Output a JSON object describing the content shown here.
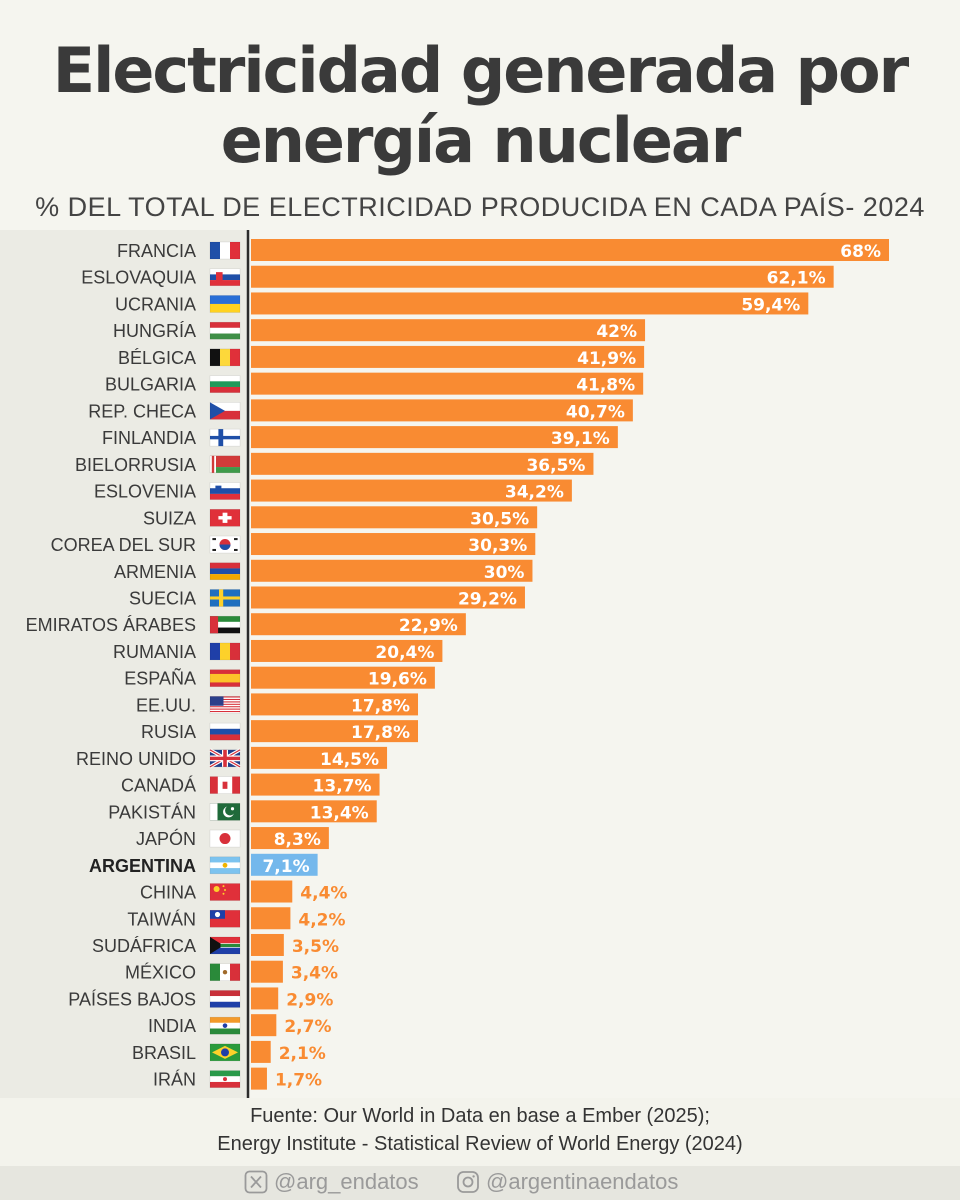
{
  "title_line1": "Electricidad generada por",
  "title_line2": "energía nuclear",
  "subtitle": "% DEL TOTAL DE ELECTRICIDAD PRODUCIDA EN CADA PAÍS- 2024",
  "source_line1": "Fuente: Our World in Data en base a Ember (2025);",
  "source_line2": "Energy Institute - Statistical Review of World Energy (2024)",
  "social": {
    "x_handle": "@arg_endatos",
    "x_icon": "x-logo-icon",
    "instagram_handle": "@argentinaendatos",
    "instagram_icon": "instagram-icon"
  },
  "colors": {
    "bar": "#f98b32",
    "highlight_bar": "#74b8ec",
    "label_outside": "#f98b32",
    "label_inside": "#ffffff",
    "text": "#3a3a3a"
  },
  "chart_data": {
    "type": "bar",
    "orientation": "horizontal",
    "unit": "%",
    "highlight": "ARGENTINA",
    "categories": [
      "FRANCIA",
      "ESLOVAQUIA",
      "UCRANIA",
      "HUNGRÍA",
      "BÉLGICA",
      "BULGARIA",
      "REP. CHECA",
      "FINLANDIA",
      "BIELORRUSIA",
      "ESLOVENIA",
      "SUIZA",
      "COREA DEL SUR",
      "ARMENIA",
      "SUECIA",
      "EMIRATOS ÁRABES",
      "RUMANIA",
      "ESPAÑA",
      "EE.UU.",
      "RUSIA",
      "REINO UNIDO",
      "CANADÁ",
      "PAKISTÁN",
      "JAPÓN",
      "ARGENTINA",
      "CHINA",
      "TAIWÁN",
      "SUDÁFRICA",
      "MÉXICO",
      "PAÍSES BAJOS",
      "INDIA",
      "BRASIL",
      "IRÁN"
    ],
    "values": [
      68,
      62.1,
      59.4,
      42,
      41.9,
      41.8,
      40.7,
      39.1,
      36.5,
      34.2,
      30.5,
      30.3,
      30,
      29.2,
      22.9,
      20.4,
      19.6,
      17.8,
      17.8,
      14.5,
      13.7,
      13.4,
      8.3,
      7.1,
      4.4,
      4.2,
      3.5,
      3.4,
      2.9,
      2.7,
      2.1,
      1.7
    ],
    "value_labels": [
      "68%",
      "62,1%",
      "59,4%",
      "42%",
      "41,9%",
      "41,8%",
      "40,7%",
      "39,1%",
      "36,5%",
      "34,2%",
      "30,5%",
      "30,3%",
      "30%",
      "29,2%",
      "22,9%",
      "20,4%",
      "19,6%",
      "17,8%",
      "17,8%",
      "14,5%",
      "13,7%",
      "13,4%",
      "8,3%",
      "7,1%",
      "4,4%",
      "4,2%",
      "3,5%",
      "3,4%",
      "2,9%",
      "2,7%",
      "2,1%",
      "1,7%"
    ],
    "flags": [
      "france-flag-icon",
      "slovakia-flag-icon",
      "ukraine-flag-icon",
      "hungary-flag-icon",
      "belgium-flag-icon",
      "bulgaria-flag-icon",
      "czechia-flag-icon",
      "finland-flag-icon",
      "belarus-flag-icon",
      "slovenia-flag-icon",
      "switzerland-flag-icon",
      "south-korea-flag-icon",
      "armenia-flag-icon",
      "sweden-flag-icon",
      "uae-flag-icon",
      "romania-flag-icon",
      "spain-flag-icon",
      "usa-flag-icon",
      "russia-flag-icon",
      "uk-flag-icon",
      "canada-flag-icon",
      "pakistan-flag-icon",
      "japan-flag-icon",
      "argentina-flag-icon",
      "china-flag-icon",
      "taiwan-flag-icon",
      "south-africa-flag-icon",
      "mexico-flag-icon",
      "netherlands-flag-icon",
      "india-flag-icon",
      "brazil-flag-icon",
      "iran-flag-icon"
    ],
    "xlim": [
      0,
      68
    ],
    "grid": false,
    "legend": "none",
    "xlabel": "",
    "ylabel": ""
  }
}
